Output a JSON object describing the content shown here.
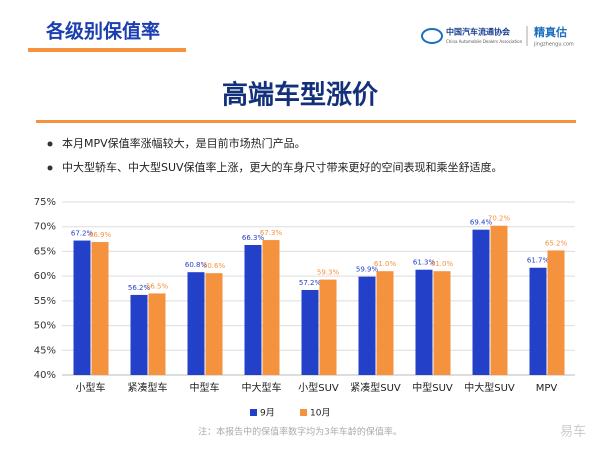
{
  "header": {
    "title": "各级别保值率",
    "logo_cn": "中国汽车流通协会",
    "logo_en": "China Automobile Dealers Association",
    "brand": "精真估",
    "brand_url": "jingzhengu.com"
  },
  "slide_title": "高端车型涨价",
  "bullets": [
    "本月MPV保值率涨幅较大，是目前市场热门产品。",
    "中大型轿车、中大型SUV保值率上涨，更大的车身尺寸带来更好的空间表现和乘坐舒适度。"
  ],
  "chart_data": {
    "type": "bar",
    "categories": [
      "小型车",
      "紧凑型车",
      "中型车",
      "中大型车",
      "小型SUV",
      "紧凑型SUV",
      "中型SUV",
      "中大型SUV",
      "MPV"
    ],
    "series": [
      {
        "name": "9月",
        "color": "#2340c8",
        "values": [
          67.2,
          56.2,
          60.8,
          66.3,
          57.2,
          59.9,
          61.3,
          69.4,
          61.7
        ],
        "value_labels": [
          "67.2%",
          "56.2%",
          "60.8%",
          "66.3%",
          "57.2%",
          "59.9%",
          "61.3%",
          "69.4%",
          "61.7%"
        ]
      },
      {
        "name": "10月",
        "color": "#f5923e",
        "values": [
          66.9,
          56.5,
          60.6,
          67.3,
          59.3,
          61.0,
          61.0,
          70.2,
          65.2
        ],
        "value_labels": [
          "66.9%",
          "56.5%",
          "60.6%",
          "67.3%",
          "59.3%",
          "61.0%",
          "61.0%",
          "70.2%",
          "65.2%"
        ]
      }
    ],
    "ylim": [
      40,
      75
    ],
    "yticks": [
      {
        "value": 40,
        "label": "40%"
      },
      {
        "value": 45,
        "label": "45%"
      },
      {
        "value": 50,
        "label": "50%"
      },
      {
        "value": 55,
        "label": "55%"
      },
      {
        "value": 60,
        "label": "60%"
      },
      {
        "value": 65,
        "label": "65%"
      },
      {
        "value": 70,
        "label": "70%"
      },
      {
        "value": 75,
        "label": "75%"
      }
    ],
    "grid": true,
    "legend": "bottom"
  },
  "footnote": "注：本报告中的保值率数字均为3年车龄的保值率。",
  "watermark": "易车"
}
